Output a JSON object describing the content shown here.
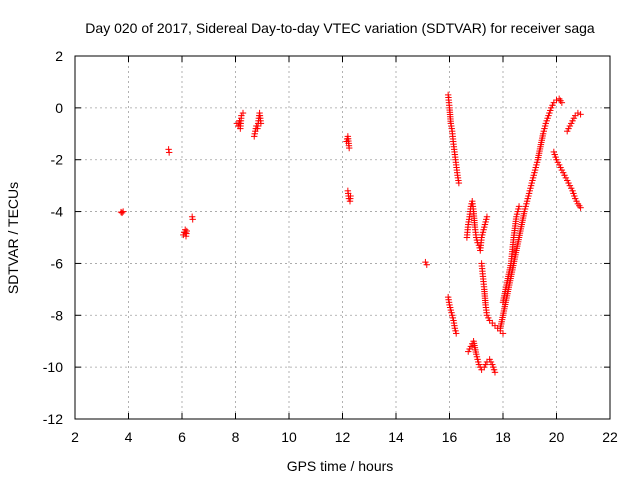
{
  "chart_data": {
    "type": "scatter",
    "title": "Day 020 of 2017, Sidereal Day-to-day VTEC variation (SDTVAR) for receiver saga",
    "xlabel": "GPS time / hours",
    "ylabel": "SDTVAR / TECUs",
    "xlim": [
      2,
      22
    ],
    "ylim": [
      -12,
      2
    ],
    "xticks": [
      2,
      4,
      6,
      8,
      10,
      12,
      14,
      16,
      18,
      20,
      22
    ],
    "yticks": [
      2,
      0,
      -2,
      -4,
      -6,
      -8,
      -10,
      -12
    ],
    "xtick_labels": [
      "2",
      "4",
      "6",
      "8",
      "10",
      "12",
      "14",
      "16",
      "18",
      "20",
      "22"
    ],
    "ytick_labels": [
      "2",
      "0",
      "-2",
      "-4",
      "-6",
      "-8",
      "-10",
      "-12"
    ],
    "grid": true,
    "marker": "+",
    "color": "#ff0000",
    "series": [
      {
        "name": "SDTVAR",
        "segments": [
          [
            [
              3.72,
              -4.02
            ],
            [
              3.76,
              -4.05
            ],
            [
              3.8,
              -4.0
            ]
          ],
          [
            [
              5.5,
              -1.6
            ],
            [
              5.52,
              -1.72
            ]
          ],
          [
            [
              6.05,
              -4.9
            ],
            [
              6.08,
              -4.8
            ],
            [
              6.12,
              -4.7
            ],
            [
              6.15,
              -4.95
            ],
            [
              6.18,
              -4.75
            ]
          ],
          [
            [
              6.38,
              -4.2
            ],
            [
              6.4,
              -4.3
            ]
          ],
          [
            [
              8.05,
              -0.6
            ],
            [
              8.1,
              -0.7
            ],
            [
              8.15,
              -0.5
            ],
            [
              8.18,
              -0.8
            ],
            [
              8.22,
              -0.3
            ],
            [
              8.28,
              -0.2
            ]
          ],
          [
            [
              8.7,
              -1.1
            ],
            [
              8.74,
              -0.9
            ],
            [
              8.78,
              -0.7
            ],
            [
              8.82,
              -0.8
            ],
            [
              8.86,
              -0.5
            ],
            [
              8.9,
              -0.2
            ],
            [
              8.95,
              -0.6
            ]
          ],
          [
            [
              12.15,
              -1.3
            ],
            [
              12.2,
              -1.1
            ],
            [
              12.25,
              -1.55
            ]
          ],
          [
            [
              12.2,
              -3.2
            ],
            [
              12.24,
              -3.5
            ],
            [
              12.28,
              -3.6
            ],
            [
              12.3,
              -3.4
            ]
          ],
          [
            [
              15.1,
              -5.95
            ],
            [
              15.15,
              -6.05
            ]
          ],
          [
            [
              15.95,
              0.5
            ],
            [
              16.0,
              0.0
            ],
            [
              16.05,
              -0.6
            ],
            [
              16.1,
              -0.9
            ],
            [
              16.15,
              -1.4
            ],
            [
              16.2,
              -1.8
            ],
            [
              16.25,
              -2.2
            ],
            [
              16.3,
              -2.6
            ],
            [
              16.35,
              -2.9
            ]
          ],
          [
            [
              15.95,
              -7.3
            ],
            [
              16.0,
              -7.6
            ],
            [
              16.05,
              -7.8
            ],
            [
              16.1,
              -8.0
            ],
            [
              16.15,
              -8.2
            ],
            [
              16.2,
              -8.5
            ],
            [
              16.25,
              -8.7
            ]
          ],
          [
            [
              16.65,
              -5.0
            ],
            [
              16.7,
              -4.5
            ],
            [
              16.75,
              -4.2
            ],
            [
              16.8,
              -3.8
            ],
            [
              16.85,
              -3.6
            ],
            [
              16.9,
              -4.0
            ],
            [
              16.95,
              -4.6
            ],
            [
              17.0,
              -5.0
            ],
            [
              17.05,
              -5.2
            ]
          ],
          [
            [
              17.1,
              -5.3
            ],
            [
              17.15,
              -5.5
            ],
            [
              17.2,
              -5.0
            ],
            [
              17.25,
              -4.8
            ],
            [
              17.3,
              -4.6
            ],
            [
              17.35,
              -4.4
            ],
            [
              17.4,
              -4.2
            ]
          ],
          [
            [
              16.7,
              -9.4
            ],
            [
              16.8,
              -9.2
            ],
            [
              16.9,
              -9.0
            ],
            [
              17.0,
              -9.5
            ],
            [
              17.1,
              -9.9
            ],
            [
              17.2,
              -10.1
            ],
            [
              17.3,
              -10.0
            ],
            [
              17.4,
              -9.8
            ],
            [
              17.5,
              -9.7
            ],
            [
              17.6,
              -9.9
            ],
            [
              17.7,
              -10.2
            ]
          ],
          [
            [
              17.2,
              -6.0
            ],
            [
              17.25,
              -6.5
            ],
            [
              17.3,
              -7.0
            ],
            [
              17.35,
              -7.6
            ],
            [
              17.4,
              -8.0
            ],
            [
              17.5,
              -8.2
            ],
            [
              17.6,
              -8.3
            ],
            [
              17.7,
              -8.4
            ],
            [
              17.8,
              -8.5
            ],
            [
              17.9,
              -8.6
            ],
            [
              18.0,
              -8.7
            ]
          ],
          [
            [
              17.9,
              -8.5
            ],
            [
              18.0,
              -8.0
            ],
            [
              18.1,
              -7.5
            ],
            [
              18.2,
              -7.0
            ],
            [
              18.3,
              -6.5
            ],
            [
              18.4,
              -6.0
            ],
            [
              18.5,
              -5.5
            ],
            [
              18.6,
              -5.0
            ],
            [
              18.7,
              -4.5
            ],
            [
              18.8,
              -4.0
            ],
            [
              18.9,
              -3.6
            ],
            [
              19.0,
              -3.2
            ],
            [
              19.1,
              -2.8
            ],
            [
              19.2,
              -2.4
            ],
            [
              19.3,
              -2.0
            ],
            [
              19.4,
              -1.5
            ],
            [
              19.5,
              -1.0
            ],
            [
              19.6,
              -0.6
            ],
            [
              19.7,
              -0.3
            ],
            [
              19.8,
              0.0
            ],
            [
              19.9,
              0.2
            ],
            [
              20.0,
              0.3
            ],
            [
              20.1,
              0.35
            ],
            [
              20.2,
              0.2
            ]
          ],
          [
            [
              18.0,
              -7.5
            ],
            [
              18.1,
              -7.0
            ],
            [
              18.2,
              -6.5
            ],
            [
              18.3,
              -6.0
            ],
            [
              18.4,
              -5.0
            ],
            [
              18.5,
              -4.2
            ],
            [
              18.6,
              -3.8
            ]
          ],
          [
            [
              19.9,
              -1.7
            ],
            [
              20.0,
              -2.0
            ],
            [
              20.1,
              -2.2
            ],
            [
              20.2,
              -2.4
            ],
            [
              20.3,
              -2.6
            ],
            [
              20.4,
              -2.8
            ],
            [
              20.5,
              -3.0
            ],
            [
              20.6,
              -3.2
            ],
            [
              20.7,
              -3.5
            ],
            [
              20.8,
              -3.7
            ],
            [
              20.9,
              -3.85
            ]
          ],
          [
            [
              20.4,
              -0.9
            ],
            [
              20.5,
              -0.7
            ],
            [
              20.6,
              -0.5
            ],
            [
              20.7,
              -0.3
            ],
            [
              20.8,
              -0.2
            ],
            [
              20.9,
              -0.25
            ]
          ]
        ]
      }
    ]
  }
}
